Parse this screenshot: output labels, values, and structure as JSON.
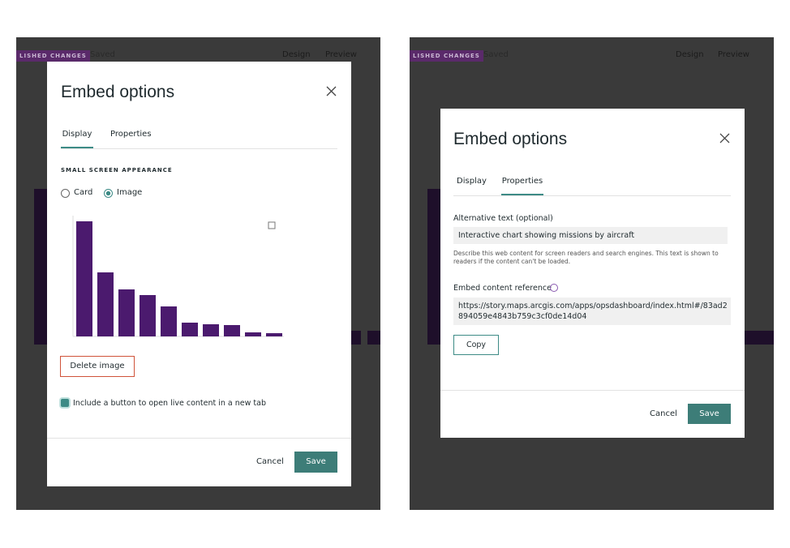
{
  "left_screen": {
    "app_bar": {
      "badge": "LISHED CHANGES",
      "status": "Saved",
      "design": "Design",
      "preview": "Preview"
    },
    "modal": {
      "title": "Embed options",
      "tabs": [
        "Display",
        "Properties"
      ],
      "active_tab": 0,
      "section_heading": "SMALL SCREEN APPEARANCE",
      "radio_options": [
        "Card",
        "Image"
      ],
      "selected_option": 1,
      "preview_image": {
        "values": [
          142,
          79,
          58,
          51,
          37,
          17,
          15,
          14,
          5,
          4
        ],
        "ylim": [
          0,
          150
        ],
        "color": "#4b1a6e"
      },
      "delete_button": "Delete image",
      "checkbox_label": "Include a button to open live content in a new tab",
      "cancel": "Cancel",
      "save": "Save"
    }
  },
  "right_screen": {
    "app_bar": {
      "badge": "LISHED CHANGES",
      "status": "Saved",
      "design": "Design",
      "preview": "Preview"
    },
    "modal": {
      "title": "Embed options",
      "tabs": [
        "Display",
        "Properties"
      ],
      "active_tab": 1,
      "alt_text_label": "Alternative text (optional)",
      "alt_text_value": "Interactive chart showing missions by aircraft",
      "alt_text_help": "Describe this web content for screen readers and search engines. This text is shown to readers if the content can't be loaded.",
      "embed_label": "Embed content reference",
      "embed_value": "https://story.maps.arcgis.com/apps/opsdashboard/index.html#/83ad2894059e4843b759c3cf0de14d04",
      "copy": "Copy",
      "cancel": "Cancel",
      "save": "Save"
    }
  }
}
